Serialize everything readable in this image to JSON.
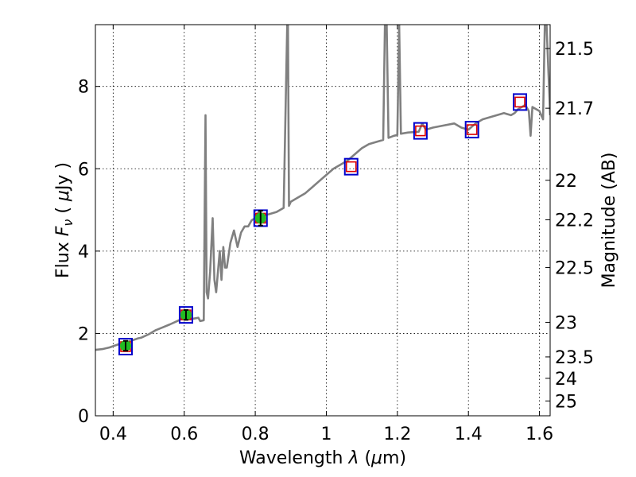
{
  "chart_data": {
    "type": "line",
    "xlabel_parts": [
      "Wavelength  ",
      "λ",
      " (",
      "μ",
      "m)"
    ],
    "ylabel_parts": [
      "Flux  ",
      "F",
      "ν",
      "  ( ",
      "μ",
      "Jy )"
    ],
    "y2label": "Magnitude (AB)",
    "xlim": [
      0.35,
      1.63
    ],
    "ylim": [
      0,
      9.5
    ],
    "x_ticks": [
      0.4,
      0.6,
      0.8,
      1.0,
      1.2,
      1.4,
      1.6
    ],
    "x_tick_labels": [
      "0.4",
      "0.6",
      "0.8",
      "1",
      "1.2",
      "1.4",
      "1.6"
    ],
    "y_ticks": [
      0,
      2,
      4,
      6,
      8
    ],
    "y_tick_labels": [
      "0",
      "2",
      "4",
      "6",
      "8"
    ],
    "y2_ticks": [
      {
        "label": "21.5",
        "flux": 8.92
      },
      {
        "label": "21.7",
        "flux": 7.47
      },
      {
        "label": "22",
        "flux": 5.72
      },
      {
        "label": "22.2",
        "flux": 4.76
      },
      {
        "label": "22.5",
        "flux": 3.6
      },
      {
        "label": "23",
        "flux": 2.27
      },
      {
        "label": "23.5",
        "flux": 1.43
      },
      {
        "label": "24",
        "flux": 0.91
      },
      {
        "label": "25",
        "flux": 0.36
      }
    ],
    "grid": true,
    "colors": {
      "spectrum": "#808080",
      "observed_fill": "#22bb22",
      "model_box": "#0000cc",
      "model_inner": "#dd0000",
      "errorbar": "#000000"
    },
    "spectrum": {
      "name": "",
      "x": [
        0.35,
        0.37,
        0.39,
        0.41,
        0.43,
        0.45,
        0.47,
        0.48,
        0.5,
        0.52,
        0.54,
        0.56,
        0.58,
        0.6,
        0.62,
        0.64,
        0.645,
        0.655,
        0.66,
        0.663,
        0.667,
        0.673,
        0.68,
        0.685,
        0.69,
        0.7,
        0.705,
        0.71,
        0.715,
        0.72,
        0.73,
        0.74,
        0.75,
        0.76,
        0.77,
        0.78,
        0.79,
        0.8,
        0.81,
        0.82,
        0.84,
        0.86,
        0.88,
        0.89,
        0.892,
        0.895,
        0.9,
        0.92,
        0.94,
        0.96,
        0.98,
        1.0,
        1.02,
        1.04,
        1.06,
        1.08,
        1.1,
        1.12,
        1.14,
        1.16,
        1.165,
        1.17,
        1.175,
        1.19,
        1.2,
        1.205,
        1.21,
        1.23,
        1.26,
        1.27,
        1.28,
        1.3,
        1.33,
        1.36,
        1.38,
        1.4,
        1.42,
        1.44,
        1.46,
        1.48,
        1.5,
        1.52,
        1.53,
        1.54,
        1.55,
        1.56,
        1.57,
        1.575,
        1.58,
        1.6,
        1.61,
        1.615,
        1.62,
        1.63
      ],
      "y": [
        1.6,
        1.62,
        1.66,
        1.72,
        1.78,
        1.82,
        1.88,
        1.9,
        1.98,
        2.08,
        2.15,
        2.22,
        2.3,
        2.38,
        2.35,
        2.38,
        2.3,
        2.32,
        7.3,
        3.0,
        2.85,
        3.5,
        4.8,
        3.3,
        3.0,
        4.0,
        3.3,
        4.1,
        3.6,
        3.6,
        4.2,
        4.5,
        4.1,
        4.45,
        4.6,
        4.6,
        4.75,
        4.8,
        4.95,
        4.85,
        4.9,
        4.95,
        5.05,
        9.5,
        9.5,
        5.1,
        5.2,
        5.3,
        5.4,
        5.55,
        5.7,
        5.85,
        6.0,
        6.1,
        6.2,
        6.35,
        6.5,
        6.6,
        6.65,
        6.7,
        9.5,
        9.5,
        6.75,
        6.8,
        6.82,
        9.5,
        6.85,
        6.88,
        6.9,
        7.1,
        6.95,
        7.0,
        7.05,
        7.1,
        7.0,
        6.95,
        7.1,
        7.2,
        7.25,
        7.3,
        7.35,
        7.3,
        7.35,
        7.45,
        7.5,
        7.55,
        7.4,
        6.8,
        7.5,
        7.4,
        7.2,
        9.5,
        9.5,
        7.3
      ]
    },
    "observed_points": {
      "x": [
        0.435,
        0.605,
        0.815
      ],
      "y": [
        1.7,
        2.45,
        4.8
      ],
      "yerr": [
        0.12,
        0.12,
        0.18
      ]
    },
    "model_points": {
      "x": [
        0.435,
        0.605,
        0.815,
        1.07,
        1.265,
        1.41,
        1.545
      ],
      "y": [
        1.68,
        2.45,
        4.8,
        6.05,
        6.92,
        6.95,
        7.62
      ]
    }
  }
}
